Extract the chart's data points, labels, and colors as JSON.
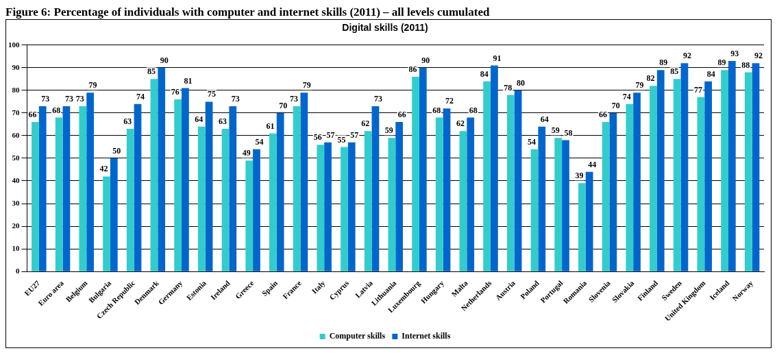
{
  "chart_data": {
    "type": "bar",
    "title": "Digital skills (2011)",
    "annotations": [
      "Figure 6: Percentage of individuals with computer and internet skills (2011) – all levels cumulated"
    ],
    "categories": [
      "EU27",
      "Euro area",
      "Belgium",
      "Bulgaria",
      "Czech Republic",
      "Denmark",
      "Germany",
      "Estonia",
      "Ireland",
      "Greece",
      "Spain",
      "France",
      "Italy",
      "Cyprus",
      "Latvia",
      "Lithuania",
      "Luxembourg",
      "Hungary",
      "Malta",
      "Netherlands",
      "Austria",
      "Poland",
      "Portugal",
      "Romania",
      "Slovenia",
      "Slovakia",
      "Finland",
      "Sweden",
      "United Kingdom",
      "Iceland",
      "Norway"
    ],
    "series": [
      {
        "name": "Computer skills",
        "color": "#33cccc",
        "values": [
          66,
          68,
          73,
          42,
          63,
          85,
          76,
          64,
          63,
          49,
          61,
          73,
          56,
          55,
          62,
          59,
          86,
          68,
          62,
          84,
          78,
          54,
          59,
          39,
          66,
          74,
          82,
          85,
          77,
          89,
          88
        ]
      },
      {
        "name": "Internet skills",
        "color": "#0066cc",
        "values": [
          73,
          73,
          79,
          50,
          74,
          90,
          81,
          75,
          73,
          54,
          70,
          79,
          57,
          57,
          73,
          66,
          90,
          72,
          68,
          91,
          80,
          64,
          58,
          44,
          70,
          79,
          89,
          92,
          84,
          93,
          92
        ]
      }
    ],
    "ylim": [
      0,
      100
    ],
    "yticks": [
      0,
      10,
      20,
      30,
      40,
      50,
      60,
      70,
      80,
      90,
      100
    ],
    "grid": "y",
    "legend": "bottom",
    "data_labels": true
  }
}
